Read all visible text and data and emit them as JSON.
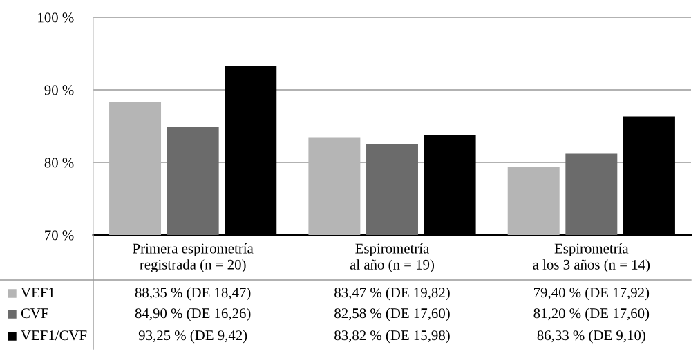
{
  "chart_data": {
    "type": "bar",
    "categories": [
      "Primera espirometría\nregistrada (n = 20)",
      "Espirometría\nal año (n = 19)",
      "Espirometría\na los 3 años (n = 14)"
    ],
    "series": [
      {
        "name": "VEF1",
        "color": "#b5b5b5",
        "values": [
          88.35,
          83.47,
          79.4
        ],
        "value_labels": [
          "88,35 % (DE 18,47)",
          "83,47 % (DE 19,82)",
          "79,40 % (DE 17,92)"
        ]
      },
      {
        "name": "CVF",
        "color": "#6b6b6b",
        "values": [
          84.9,
          82.58,
          81.2
        ],
        "value_labels": [
          "84,90 % (DE 16,26)",
          "82,58 % (DE 17,60)",
          "81,20 % (DE 17,60)"
        ]
      },
      {
        "name": "VEF1/CVF",
        "color": "#000000",
        "values": [
          93.25,
          83.82,
          86.33
        ],
        "value_labels": [
          "93,25 % (DE 9,42)",
          "83,82 % (DE 15,98)",
          "86,33 % (DE 9,10)"
        ]
      }
    ],
    "ylim": [
      70,
      100
    ],
    "yticks": [
      {
        "value": 70,
        "label": "70 %"
      },
      {
        "value": 80,
        "label": "80 %"
      },
      {
        "value": 90,
        "label": "90 %"
      },
      {
        "value": 100,
        "label": "100 %"
      }
    ],
    "grid": "y",
    "legend": "left"
  }
}
